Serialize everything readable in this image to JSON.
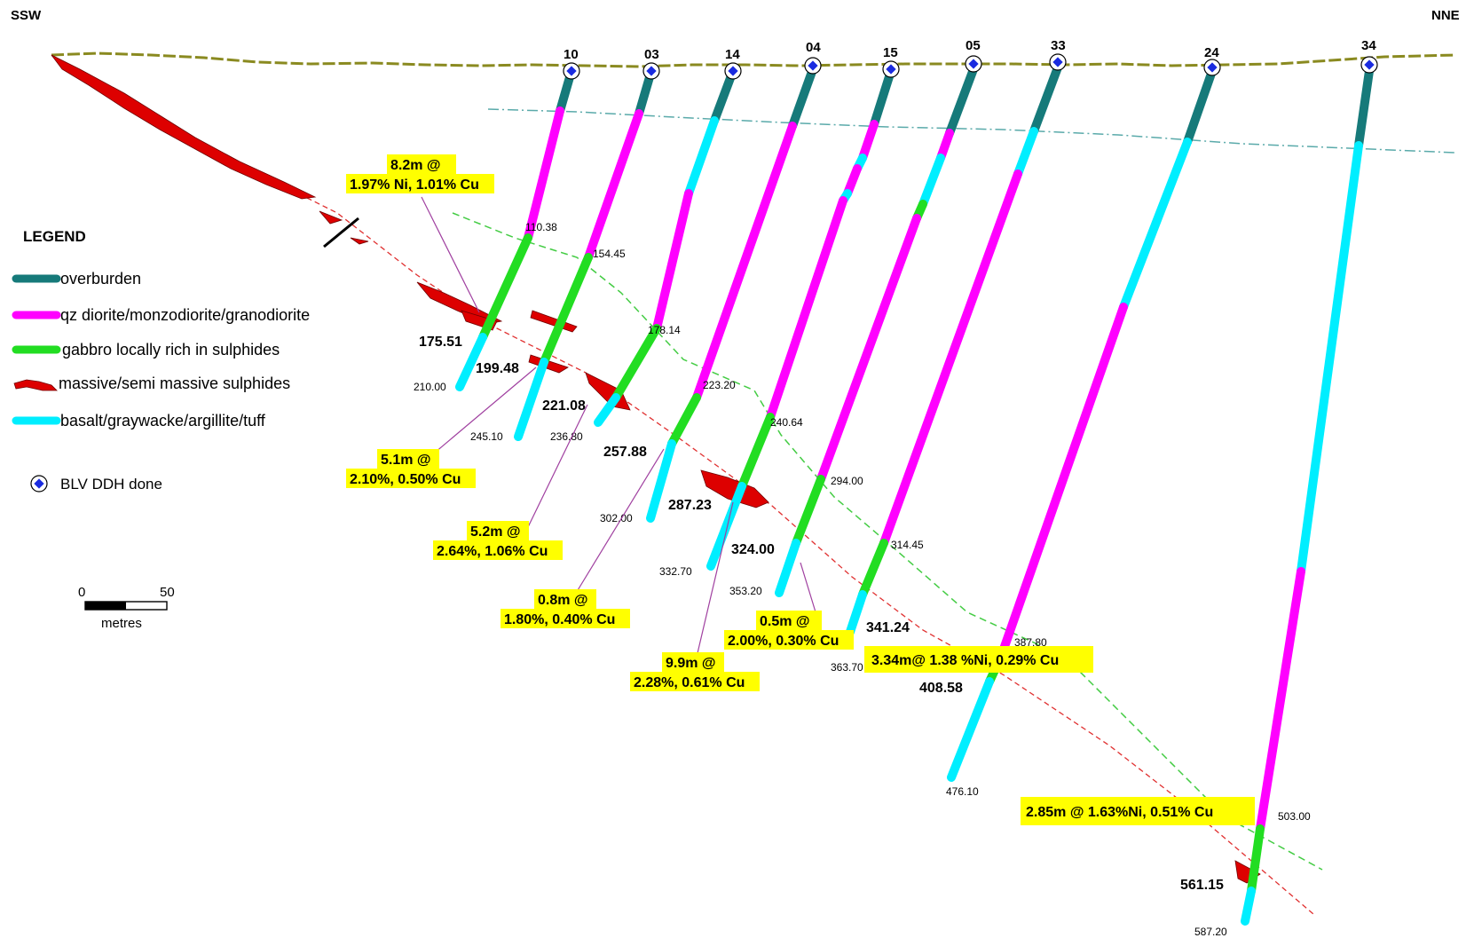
{
  "direction": {
    "left": "SSW",
    "right": "NNE"
  },
  "legend": {
    "title": "LEGEND",
    "items": [
      {
        "label": "overburden",
        "color": "#167a7a"
      },
      {
        "label": "qz diorite/monzodiorite/granodiorite",
        "color": "#ff00ff"
      },
      {
        "label": "gabbro locally rich in sulphides",
        "color": "#22dd22"
      },
      {
        "label": "massive/semi massive sulphides",
        "color": "#dd0000"
      },
      {
        "label": "basalt/graywacke/argillite/tuff",
        "color": "#00eeff"
      }
    ],
    "ddh_label": "BLV DDH done"
  },
  "scale": {
    "zero": "0",
    "max": "50",
    "unit": "metres"
  },
  "holes": [
    {
      "id": "10",
      "end_depth": "210.00",
      "contact_depth": "110.38",
      "ore_depth": "175.51"
    },
    {
      "id": "03",
      "end_depth": "245.10",
      "contact_depth": "154.45",
      "ore_depth": "199.48"
    },
    {
      "id": "14",
      "end_depth": "236.80",
      "contact_depth": "178.14",
      "ore_depth": "221.08"
    },
    {
      "id": "04",
      "end_depth": "302.00",
      "contact_depth": "223.20",
      "ore_depth": "257.88"
    },
    {
      "id": "15",
      "end_depth": "332.70",
      "contact_depth": "240.64",
      "ore_depth": "287.23"
    },
    {
      "id": "05",
      "end_depth": "353.20",
      "contact_depth": "294.00",
      "ore_depth": "324.00"
    },
    {
      "id": "33",
      "end_depth": "363.70",
      "contact_depth": "314.45",
      "ore_depth": "341.24"
    },
    {
      "id": "24",
      "end_depth": "476.10",
      "contact_depth": "387.80",
      "ore_depth": "408.58"
    },
    {
      "id": "34",
      "end_depth": "587.20",
      "contact_depth": "503.00",
      "ore_depth": "561.15"
    }
  ],
  "intercepts": [
    {
      "line1": "8.2m @",
      "line2": "1.97% Ni, 1.01% Cu"
    },
    {
      "line1": "5.1m @",
      "line2": "2.10%, 0.50% Cu"
    },
    {
      "line1": "5.2m @",
      "line2": "2.64%, 1.06% Cu"
    },
    {
      "line1": "0.8m @",
      "line2": "1.80%, 0.40% Cu"
    },
    {
      "line1": "9.9m @",
      "line2": "2.28%, 0.61% Cu"
    },
    {
      "line1": "0.5m @",
      "line2": "2.00%, 0.30% Cu"
    },
    {
      "line1": "3.34m@ 1.38 %Ni, 0.29% Cu",
      "line2": ""
    },
    {
      "line1": "2.85m @ 1.63%Ni, 0.51% Cu",
      "line2": ""
    }
  ]
}
